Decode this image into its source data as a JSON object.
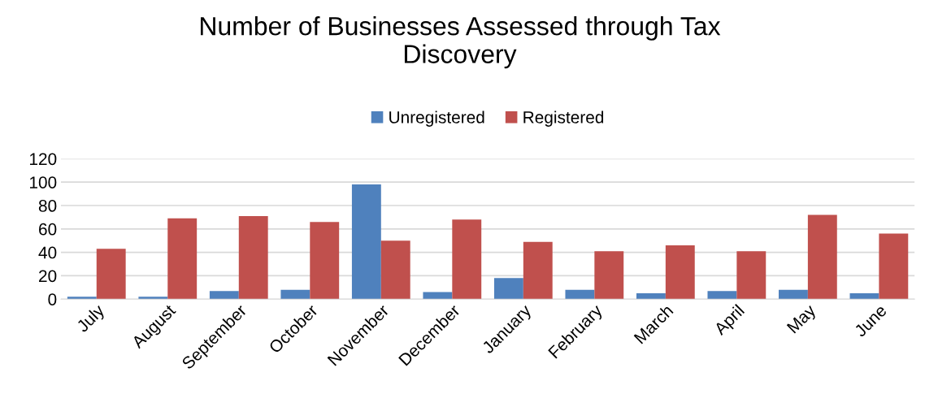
{
  "chart_data": {
    "type": "bar",
    "title": "Number of Businesses Assessed through Tax\nDiscovery",
    "categories": [
      "July",
      "August",
      "September",
      "October",
      "November",
      "December",
      "January",
      "February",
      "March",
      "April",
      "May",
      "June"
    ],
    "series": [
      {
        "name": "Unregistered",
        "color": "#4f81bd",
        "values": [
          2,
          2,
          7,
          8,
          98,
          6,
          18,
          8,
          5,
          7,
          8,
          5
        ]
      },
      {
        "name": "Registered",
        "color": "#c0504d",
        "values": [
          43,
          69,
          71,
          66,
          50,
          68,
          49,
          41,
          46,
          41,
          72,
          56
        ]
      }
    ],
    "ylim": [
      0,
      120
    ],
    "yticks": [
      0,
      20,
      40,
      60,
      80,
      100,
      120
    ],
    "grid": "y",
    "legend": "top"
  }
}
